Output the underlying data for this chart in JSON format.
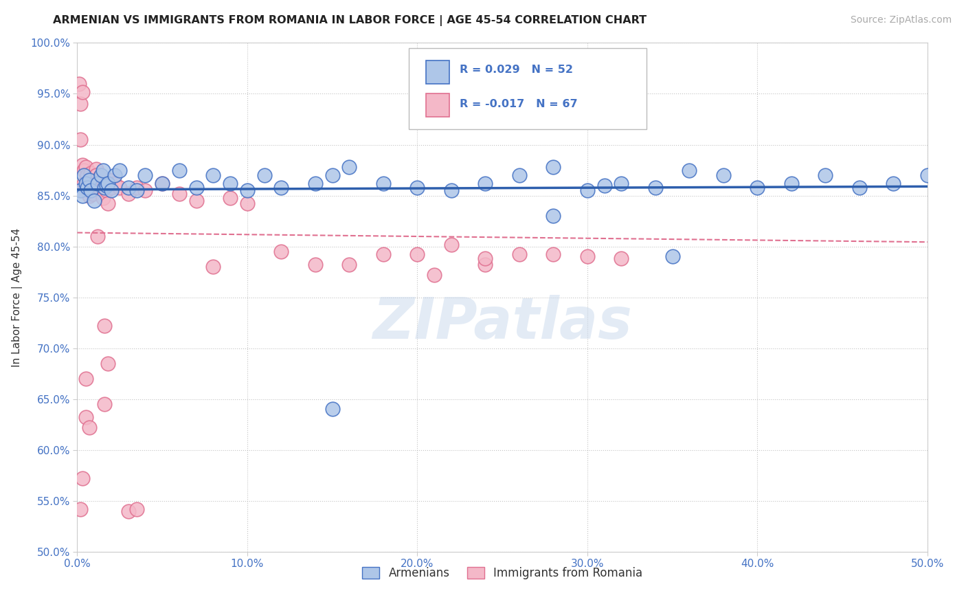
{
  "title": "ARMENIAN VS IMMIGRANTS FROM ROMANIA IN LABOR FORCE | AGE 45-54 CORRELATION CHART",
  "source": "Source: ZipAtlas.com",
  "ylabel": "In Labor Force | Age 45-54",
  "xlabel": "",
  "xlim": [
    0.0,
    0.5
  ],
  "ylim": [
    0.5,
    1.0
  ],
  "xticks": [
    0.0,
    0.1,
    0.2,
    0.3,
    0.4,
    0.5
  ],
  "yticks": [
    0.5,
    0.55,
    0.6,
    0.65,
    0.7,
    0.75,
    0.8,
    0.85,
    0.9,
    0.95,
    1.0
  ],
  "xticklabels": [
    "0.0%",
    "10.0%",
    "20.0%",
    "30.0%",
    "40.0%",
    "50.0%"
  ],
  "yticklabels": [
    "50.0%",
    "55.0%",
    "60.0%",
    "65.0%",
    "70.0%",
    "75.0%",
    "80.0%",
    "85.0%",
    "90.0%",
    "95.0%",
    "100.0%"
  ],
  "blue_color": "#aec6e8",
  "blue_edge_color": "#4472c4",
  "pink_color": "#f4b8c8",
  "pink_edge_color": "#e07090",
  "blue_line_color": "#2e5fad",
  "pink_line_color": "#e07090",
  "R_blue": 0.029,
  "N_blue": 52,
  "R_pink": -0.017,
  "N_pink": 67,
  "legend_label_blue": "Armenians",
  "legend_label_pink": "Immigrants from Romania",
  "watermark": "ZIPatlas",
  "title_color": "#222222",
  "axis_color": "#4472c4",
  "blue_x": [
    0.002,
    0.003,
    0.004,
    0.005,
    0.006,
    0.007,
    0.008,
    0.01,
    0.012,
    0.014,
    0.015,
    0.016,
    0.017,
    0.018,
    0.02,
    0.022,
    0.025,
    0.03,
    0.035,
    0.04,
    0.05,
    0.06,
    0.07,
    0.08,
    0.09,
    0.1,
    0.11,
    0.12,
    0.14,
    0.15,
    0.16,
    0.18,
    0.2,
    0.22,
    0.24,
    0.26,
    0.28,
    0.3,
    0.31,
    0.32,
    0.34,
    0.36,
    0.38,
    0.4,
    0.42,
    0.44,
    0.46,
    0.48,
    0.5,
    0.35,
    0.28,
    0.15
  ],
  "blue_y": [
    0.855,
    0.85,
    0.87,
    0.862,
    0.858,
    0.865,
    0.855,
    0.845,
    0.862,
    0.87,
    0.875,
    0.858,
    0.86,
    0.862,
    0.855,
    0.87,
    0.875,
    0.858,
    0.855,
    0.87,
    0.862,
    0.875,
    0.858,
    0.87,
    0.862,
    0.855,
    0.87,
    0.858,
    0.862,
    0.87,
    0.878,
    0.862,
    0.858,
    0.855,
    0.862,
    0.87,
    0.878,
    0.855,
    0.86,
    0.862,
    0.858,
    0.875,
    0.87,
    0.858,
    0.862,
    0.87,
    0.858,
    0.862,
    0.87,
    0.79,
    0.83,
    0.64
  ],
  "pink_x": [
    0.001,
    0.002,
    0.002,
    0.003,
    0.003,
    0.004,
    0.004,
    0.005,
    0.005,
    0.006,
    0.006,
    0.007,
    0.007,
    0.008,
    0.008,
    0.009,
    0.009,
    0.01,
    0.01,
    0.011,
    0.011,
    0.012,
    0.013,
    0.014,
    0.015,
    0.016,
    0.017,
    0.018,
    0.019,
    0.02,
    0.022,
    0.025,
    0.03,
    0.035,
    0.04,
    0.05,
    0.06,
    0.07,
    0.08,
    0.09,
    0.1,
    0.12,
    0.14,
    0.16,
    0.18,
    0.2,
    0.22,
    0.24,
    0.26,
    0.28,
    0.3,
    0.32,
    0.03,
    0.035,
    0.016,
    0.018,
    0.016,
    0.005,
    0.007,
    0.003,
    0.002,
    0.003,
    0.006,
    0.21,
    0.24,
    0.005,
    0.012
  ],
  "pink_y": [
    0.96,
    0.94,
    0.905,
    0.88,
    0.855,
    0.875,
    0.862,
    0.878,
    0.86,
    0.87,
    0.855,
    0.862,
    0.85,
    0.872,
    0.858,
    0.865,
    0.852,
    0.862,
    0.858,
    0.876,
    0.87,
    0.86,
    0.868,
    0.855,
    0.848,
    0.86,
    0.855,
    0.842,
    0.865,
    0.858,
    0.862,
    0.858,
    0.852,
    0.858,
    0.855,
    0.862,
    0.852,
    0.845,
    0.78,
    0.848,
    0.842,
    0.795,
    0.782,
    0.782,
    0.792,
    0.792,
    0.802,
    0.782,
    0.792,
    0.792,
    0.79,
    0.788,
    0.54,
    0.542,
    0.645,
    0.685,
    0.722,
    0.632,
    0.622,
    0.572,
    0.542,
    0.952,
    0.862,
    0.772,
    0.788,
    0.67,
    0.81
  ]
}
